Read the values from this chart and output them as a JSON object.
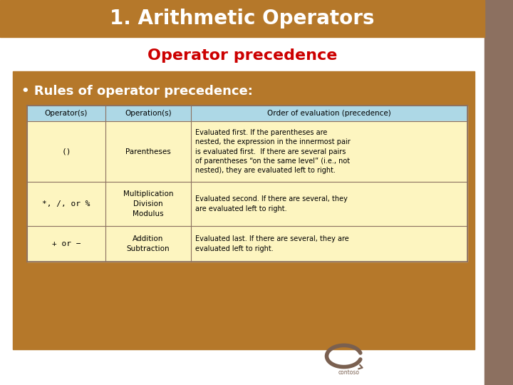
{
  "title": "1. Arithmetic Operators",
  "subtitle": "Operator precedence",
  "bullet": "• Rules of operator precedence:",
  "title_bg": "#b5782a",
  "title_color": "#ffffff",
  "subtitle_color": "#cc0000",
  "bullet_color": "#ffffff",
  "slide_bg": "#ffffff",
  "content_bg": "#b5782a",
  "right_sidebar_color": "#8c7060",
  "table_header_bg": "#add8e6",
  "table_row_bg": "#fdf5c0",
  "table_border": "#8c7060",
  "col_headers": [
    "Operator(s)",
    "Operation(s)",
    "Order of evaluation (precedence)"
  ],
  "rows": [
    {
      "op": "()",
      "operation": "Parentheses",
      "desc": "Evaluated first. If the parentheses are\nnested, the expression in the innermost pair\nis evaluated first.  If there are several pairs\nof parentheses “on the same level” (i.e., not\nnested), they are evaluated left to right."
    },
    {
      "op": "*, /, or %",
      "operation": "Multiplication\nDivision\nModulus",
      "desc": "Evaluated second. If there are several, they\nare evaluated left to right."
    },
    {
      "op": "+ or −",
      "operation": "Addition\nSubtraction",
      "desc": "Evaluated last. If there are several, they are\nevaluated left to right."
    }
  ]
}
